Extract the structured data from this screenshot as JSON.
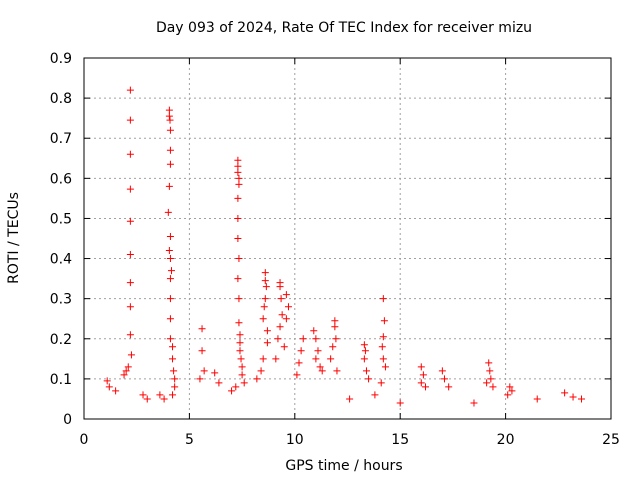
{
  "chart_data": {
    "type": "scatter",
    "title": "Day 093 of 2024, Rate Of TEC Index for receiver mizu",
    "xlabel": "GPS time / hours",
    "ylabel": "ROTI / TECUs",
    "xlim": [
      0,
      25
    ],
    "ylim": [
      0,
      0.9
    ],
    "xticks": [
      "0",
      "5",
      "10",
      "15",
      "20",
      "25"
    ],
    "yticks": [
      "0",
      "0.1",
      "0.2",
      "0.3",
      "0.4",
      "0.5",
      "0.6",
      "0.7",
      "0.8",
      "0.9"
    ],
    "grid": true,
    "marker": "+",
    "color": "#ff0000",
    "series": [
      {
        "x": [
          2.2,
          2.2,
          2.2,
          2.2,
          2.2,
          2.2,
          2.2,
          2.2,
          2.2,
          2.25,
          2.1,
          2.0,
          1.9,
          4.05,
          4.05,
          4.08,
          4.1,
          4.1,
          4.1,
          4.05,
          4.0,
          4.1,
          4.05,
          4.1,
          4.15,
          4.1,
          4.1,
          4.1,
          4.1,
          4.2,
          4.2,
          4.25,
          4.3,
          4.3,
          4.2,
          7.3,
          7.3,
          7.3,
          7.35,
          7.35,
          7.3,
          7.3,
          7.3,
          7.35,
          7.3,
          7.35,
          7.35,
          7.4,
          7.4,
          7.4,
          7.45,
          7.5,
          7.5,
          7.6,
          7.2,
          7.0,
          8.6,
          8.6,
          8.65,
          8.6,
          8.55,
          8.5,
          8.7,
          8.7,
          8.5,
          8.4,
          8.2,
          9.3,
          9.3,
          9.35,
          9.4,
          9.3,
          9.2,
          9.1,
          9.6,
          9.7,
          9.6,
          9.5,
          10.4,
          10.3,
          10.2,
          10.1,
          10.9,
          11.0,
          11.1,
          11.0,
          11.2,
          11.3,
          11.9,
          11.9,
          11.95,
          11.8,
          11.7,
          12.0,
          13.3,
          13.35,
          13.3,
          13.4,
          13.5,
          14.2,
          14.25,
          14.2,
          14.15,
          14.2,
          14.3,
          14.1,
          16.0,
          16.1,
          16.0,
          16.2,
          17.0,
          17.1,
          17.3,
          19.2,
          19.25,
          19.3,
          19.1,
          19.4,
          20.2,
          20.3,
          20.1,
          5.6,
          5.6,
          5.7,
          5.5,
          6.2,
          6.4,
          3.6,
          3.8,
          1.1,
          1.2,
          1.5,
          2.8,
          3.0,
          22.8,
          23.2,
          23.6,
          21.5,
          18.5,
          15.0,
          12.6,
          13.8
        ],
        "y": [
          0.82,
          0.745,
          0.66,
          0.573,
          0.493,
          0.41,
          0.34,
          0.28,
          0.21,
          0.16,
          0.13,
          0.12,
          0.11,
          0.77,
          0.755,
          0.745,
          0.72,
          0.67,
          0.635,
          0.58,
          0.515,
          0.455,
          0.42,
          0.4,
          0.37,
          0.35,
          0.3,
          0.25,
          0.2,
          0.18,
          0.15,
          0.12,
          0.1,
          0.08,
          0.06,
          0.645,
          0.63,
          0.615,
          0.6,
          0.585,
          0.55,
          0.5,
          0.45,
          0.4,
          0.35,
          0.3,
          0.24,
          0.21,
          0.19,
          0.17,
          0.15,
          0.13,
          0.11,
          0.09,
          0.08,
          0.07,
          0.365,
          0.345,
          0.33,
          0.3,
          0.28,
          0.25,
          0.22,
          0.19,
          0.15,
          0.12,
          0.1,
          0.34,
          0.33,
          0.3,
          0.26,
          0.23,
          0.2,
          0.15,
          0.31,
          0.28,
          0.25,
          0.18,
          0.2,
          0.17,
          0.14,
          0.11,
          0.22,
          0.2,
          0.17,
          0.15,
          0.13,
          0.12,
          0.245,
          0.23,
          0.2,
          0.18,
          0.15,
          0.12,
          0.185,
          0.17,
          0.15,
          0.12,
          0.1,
          0.3,
          0.245,
          0.205,
          0.18,
          0.15,
          0.13,
          0.09,
          0.13,
          0.11,
          0.09,
          0.08,
          0.12,
          0.1,
          0.08,
          0.14,
          0.12,
          0.1,
          0.09,
          0.08,
          0.08,
          0.07,
          0.06,
          0.225,
          0.17,
          0.12,
          0.1,
          0.115,
          0.09,
          0.06,
          0.05,
          0.095,
          0.08,
          0.07,
          0.06,
          0.05,
          0.065,
          0.055,
          0.05,
          0.05,
          0.04,
          0.04,
          0.05,
          0.06
        ]
      }
    ]
  }
}
